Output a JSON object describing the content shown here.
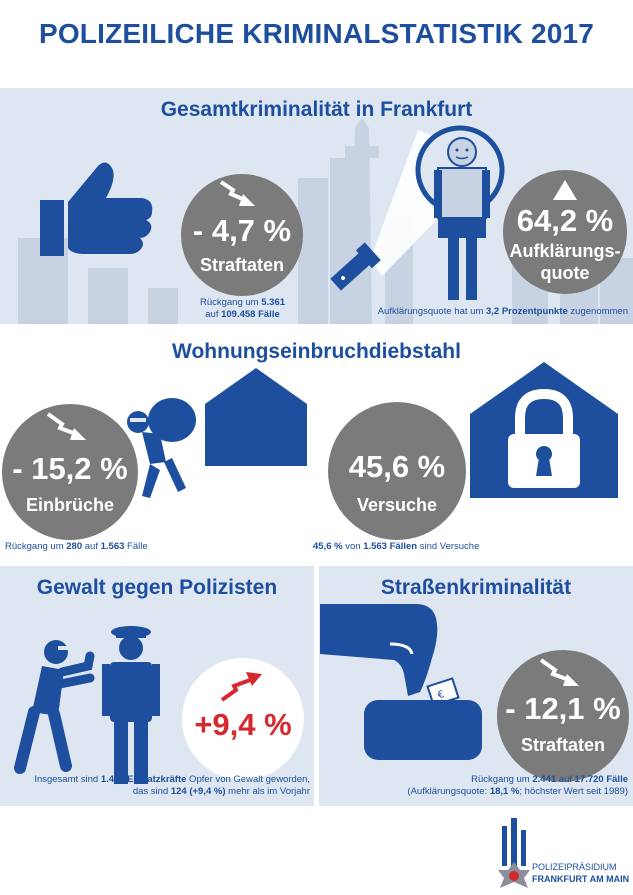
{
  "header": {
    "title": "POLIZEILICHE KRIMINALSTATISTIK 2017"
  },
  "gesamt": {
    "title": "Gesamtkriminalität in Frankfurt",
    "change_value": "- 4,7 %",
    "change_label": "Straftaten",
    "note_line1_pre": "Rückgang um ",
    "note_line1_val": "5.361",
    "note_line2_pre": "auf ",
    "note_line2_val": "109.458 Fälle",
    "quote_value": "64,2 %",
    "quote_label_1": "Aufklärungs-",
    "quote_label_2": "quote",
    "quote_note_pre": "Aufklärungsquote hat um ",
    "quote_note_val": "3,2 Prozentpunkte",
    "quote_note_post": " zugenommen"
  },
  "wohnung": {
    "title": "Wohnungseinbruchdiebstahl",
    "break_value": "- 15,2 %",
    "break_label": "Einbrüche",
    "break_note_pre": "Rückgang um ",
    "break_note_val1": "280",
    "break_note_mid": " auf ",
    "break_note_val2": "1.563",
    "break_note_post": " Fälle",
    "try_value": "45,6 %",
    "try_label": "Versuche",
    "try_note_val1": "45,6 %",
    "try_note_mid": " von ",
    "try_note_val2": "1.563 Fällen",
    "try_note_post": " sind Versuche"
  },
  "gewalt": {
    "title": "Gewalt gegen Polizisten",
    "value": "+9,4 %",
    "note1_pre": "Insgesamt sind ",
    "note1_val1": "1.442",
    "note1_mid": " ",
    "note1_val2": "Einsatzkräfte",
    "note1_post": " Opfer von Gewalt geworden,",
    "note2_pre": "das sind ",
    "note2_val": "124 (+9,4 %)",
    "note2_post": " mehr als im Vorjahr"
  },
  "strasse": {
    "title": "Straßenkriminalität",
    "value": "- 12,1 %",
    "label": "Straftaten",
    "note1_pre": "Rückgang um ",
    "note1_val1": "2.441",
    "note1_mid": "  auf ",
    "note1_val2": "17.720 Fälle",
    "note2_pre": "(Aufklärungsquote: ",
    "note2_val": "18,1 %",
    "note2_post": "; höchster Wert seit 1989)"
  },
  "footer": {
    "org_line1": "POLIZEIPRÄSIDIUM",
    "org_line2": "FRANKFURT AM MAIN"
  },
  "colors": {
    "brand_blue": "#1d4f9e",
    "panel_bg": "#dde6f1",
    "circle_grey": "#7c7b7b",
    "accent_red": "#d7282f",
    "skyline": "#c7d3e3"
  }
}
